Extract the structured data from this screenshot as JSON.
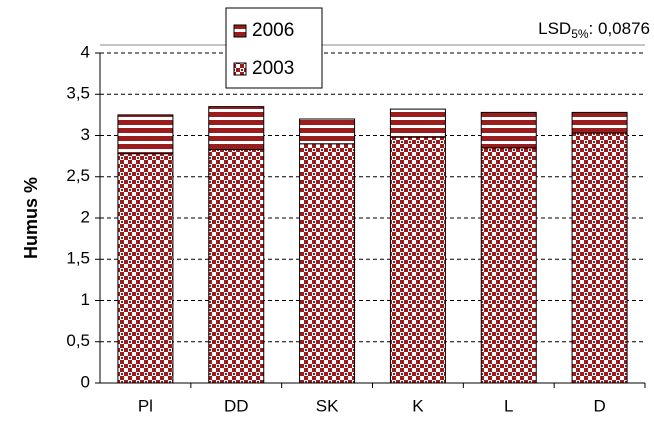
{
  "chart_data": {
    "type": "stacked_bar",
    "y_label": "Humus %",
    "annotation": {
      "main": "LSD",
      "sub": "5%",
      "rest": ": 0,0876"
    },
    "categories": [
      "Pl",
      "DD",
      "SK",
      "K",
      "L",
      "D"
    ],
    "series": [
      {
        "name": "2003",
        "color": "#9b1c1c",
        "pattern": "check",
        "values": [
          2.78,
          2.83,
          2.9,
          2.98,
          2.85,
          3.03
        ]
      },
      {
        "name": "2006",
        "color": "#9b1c1c",
        "pattern": "stripes",
        "values": [
          0.47,
          0.52,
          0.3,
          0.34,
          0.43,
          0.25
        ]
      }
    ],
    "ylim": [
      0,
      4
    ],
    "yticks": [
      0,
      {
        "value": 0.5,
        "label": "0,5"
      },
      1,
      {
        "value": 1.5,
        "label": "1,5"
      },
      2,
      {
        "value": 2.5,
        "label": "2,5"
      },
      3,
      {
        "value": 3.5,
        "label": "3,5"
      },
      4
    ],
    "grid": true
  }
}
